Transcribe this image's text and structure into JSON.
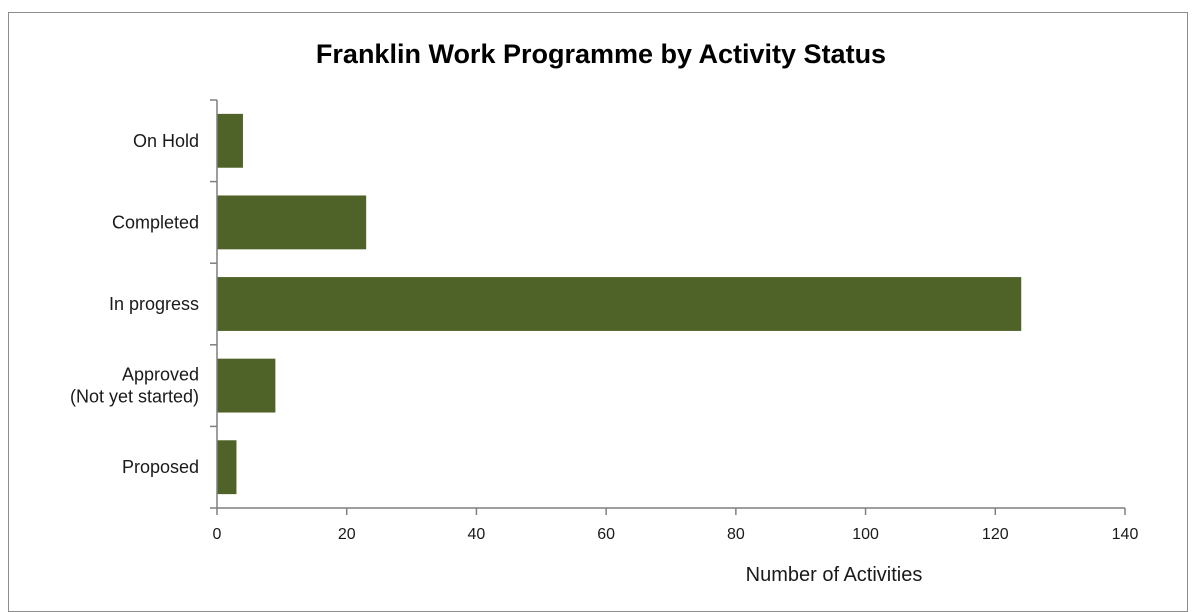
{
  "colors": {
    "bar": "#4f6228",
    "axis": "#7f7f7f"
  },
  "chart_data": {
    "type": "bar",
    "orientation": "horizontal",
    "title": "Franklin Work Programme by Activity Status",
    "xlabel": "Number of Activities",
    "ylabel": "",
    "categories": [
      [
        "On Hold"
      ],
      [
        "Completed"
      ],
      [
        "In progress"
      ],
      [
        "Approved",
        "(Not yet started)"
      ],
      [
        "Proposed"
      ]
    ],
    "values": [
      4,
      23,
      124,
      9,
      3
    ],
    "xlim": [
      0,
      140
    ],
    "xticks": [
      0,
      20,
      40,
      60,
      80,
      100,
      120,
      140
    ],
    "grid": false,
    "legend": "none"
  }
}
